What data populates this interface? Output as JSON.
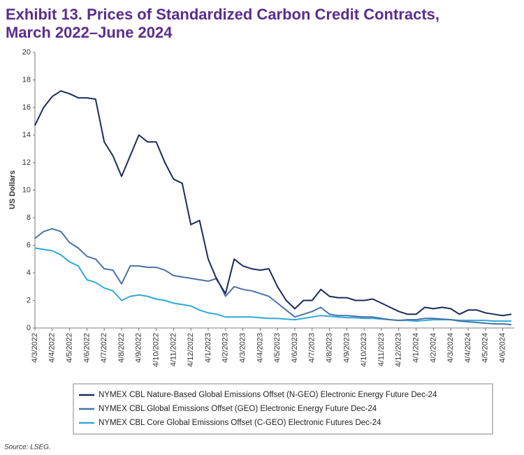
{
  "chart_data": {
    "type": "line",
    "title": [
      "Exhibit 13. Prices of Standardized Carbon Credit Contracts,",
      "March 2022–June 2024"
    ],
    "y_label": "US Dollars",
    "source": "Source: LSEG.",
    "categories": [
      "4/3/2022",
      null,
      "4/4/2022",
      null,
      "4/5/2022",
      null,
      "4/6/2022",
      null,
      "4/7/2022",
      null,
      "4/8/2022",
      null,
      "4/9/2022",
      null,
      "4/10/2022",
      null,
      "4/11/2022",
      null,
      "4/12/2022",
      null,
      "4/1/2023",
      null,
      "4/2/2023",
      null,
      "4/3/2023",
      null,
      "4/4/2023",
      null,
      "4/5/2023",
      null,
      "4/6/2023",
      null,
      "4/7/2023",
      null,
      "4/8/2023",
      null,
      "4/9/2023",
      null,
      "4/10/2023",
      null,
      "4/11/2023",
      null,
      "4/12/2023",
      null,
      "4/1/2024",
      null,
      "4/2/2024",
      null,
      "4/3/2024",
      null,
      "4/4/2024",
      null,
      "4/5/2024",
      null,
      "4/6/2024",
      null
    ],
    "series": [
      {
        "name": "NYMEX CBL Nature-Based Global Emissions Offset (N-GEO) Electronic Energy Future Dec-24",
        "color": "#1b2a5e",
        "values": [
          14.7,
          16.0,
          16.8,
          17.2,
          17.0,
          16.7,
          16.7,
          16.6,
          13.5,
          12.5,
          11.0,
          12.5,
          14.0,
          13.5,
          13.5,
          12.0,
          10.8,
          10.5,
          7.5,
          7.8,
          5.0,
          3.5,
          2.5,
          5.0,
          4.5,
          4.3,
          4.2,
          4.3,
          3.0,
          2.0,
          1.4,
          2.0,
          2.0,
          2.8,
          2.3,
          2.2,
          2.2,
          2.0,
          2.0,
          2.1,
          1.8,
          1.5,
          1.2,
          1.0,
          1.0,
          1.5,
          1.4,
          1.5,
          1.4,
          1.0,
          1.3,
          1.3,
          1.1,
          1.0,
          0.9,
          1.0
        ]
      },
      {
        "name": "NYMEX CBL Global Emissions Offset (GEO) Electronic Energy Future Dec-24",
        "color": "#4a72a8",
        "values": [
          6.5,
          7.0,
          7.2,
          7.0,
          6.2,
          5.8,
          5.2,
          5.0,
          4.3,
          4.2,
          3.2,
          4.5,
          4.5,
          4.4,
          4.4,
          4.2,
          3.8,
          3.7,
          3.6,
          3.5,
          3.4,
          3.6,
          2.3,
          3.0,
          2.8,
          2.7,
          2.5,
          2.3,
          1.8,
          1.3,
          0.8,
          1.0,
          1.2,
          1.5,
          1.0,
          0.9,
          0.9,
          0.85,
          0.8,
          0.8,
          0.7,
          0.6,
          0.55,
          0.6,
          0.6,
          0.7,
          0.7,
          0.65,
          0.6,
          0.5,
          0.45,
          0.4,
          0.35,
          0.3,
          0.3,
          0.25
        ]
      },
      {
        "name": "NYMEX CBL Core Global Emissions Offset (C-GEO) Electronic Futures Dec-24",
        "color": "#2fa8d8",
        "values": [
          5.8,
          5.7,
          5.6,
          5.3,
          4.8,
          4.5,
          3.5,
          3.3,
          2.9,
          2.7,
          2.0,
          2.3,
          2.4,
          2.3,
          2.1,
          2.0,
          1.8,
          1.7,
          1.6,
          1.3,
          1.1,
          1.0,
          0.8,
          0.8,
          0.8,
          0.8,
          0.75,
          0.7,
          0.7,
          0.65,
          0.6,
          0.7,
          0.8,
          0.9,
          0.85,
          0.8,
          0.75,
          0.75,
          0.7,
          0.7,
          0.65,
          0.6,
          0.55,
          0.55,
          0.5,
          0.55,
          0.6,
          0.6,
          0.6,
          0.55,
          0.55,
          0.55,
          0.55,
          0.5,
          0.5,
          0.5
        ]
      }
    ],
    "ylim": [
      0,
      20
    ],
    "yticks": [
      0,
      2,
      4,
      6,
      8,
      10,
      12,
      14,
      16,
      18,
      20
    ],
    "grid": false
  }
}
